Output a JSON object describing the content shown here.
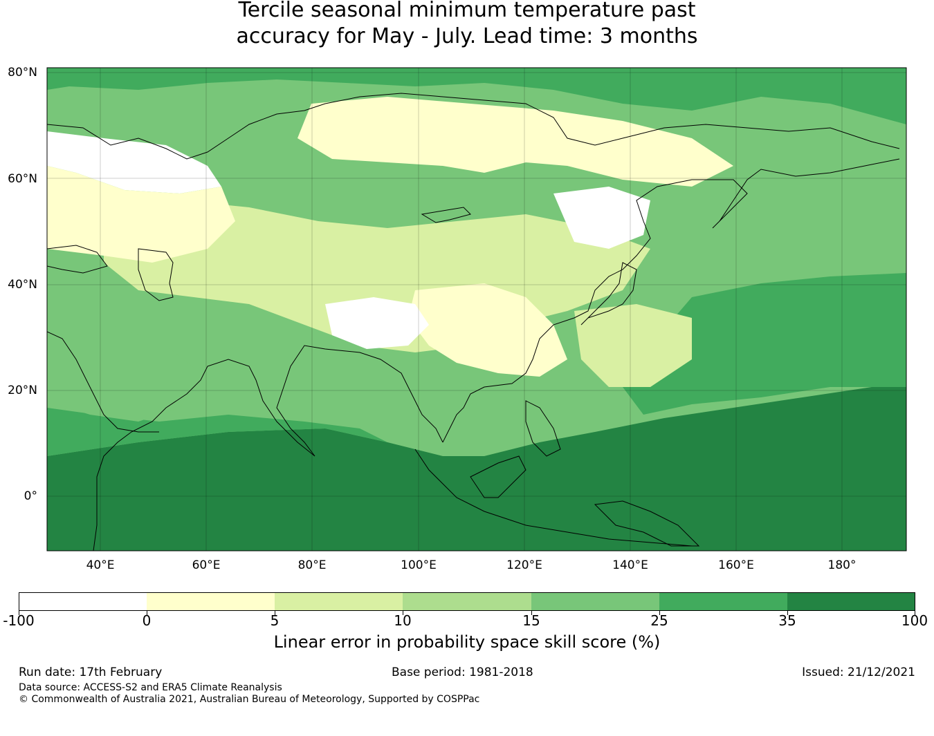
{
  "title_line1": "Tercile seasonal minimum temperature past",
  "title_line2": "accuracy for May - July. Lead time: 3 months",
  "map": {
    "lat_labels": [
      "80°N",
      "60°N",
      "40°N",
      "20°N",
      "0°"
    ],
    "lon_labels": [
      "40°E",
      "60°E",
      "80°E",
      "100°E",
      "120°E",
      "140°E",
      "160°E",
      "180°"
    ]
  },
  "colorbar": {
    "title": "Linear error in probability space skill score (%)",
    "bounds": [
      "-100",
      "0",
      "5",
      "10",
      "15",
      "25",
      "35",
      "100"
    ],
    "colors": [
      "#ffffff",
      "#ffffcc",
      "#d9f0a3",
      "#addd8e",
      "#78c679",
      "#41ab5d",
      "#238443"
    ]
  },
  "footer": {
    "run_date": "Run date: 17th February",
    "base_period": "Base period: 1981-2018",
    "issued": "Issued: 21/12/2021",
    "data_source": "Data source: ACCESS-S2 and ERA5 Climate Reanalysis",
    "copyright": "© Commonwealth of Australia 2021, Australian Bureau of Meteorology, Supported by COSPPac"
  }
}
